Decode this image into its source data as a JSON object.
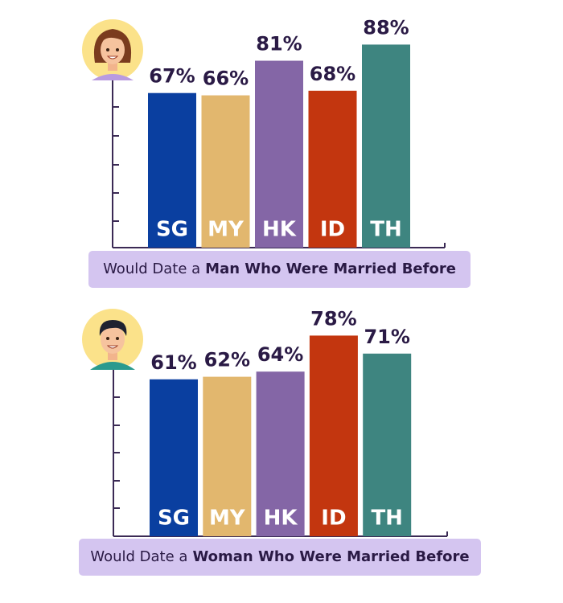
{
  "chart_data": [
    {
      "type": "bar",
      "title": "Would Date a",
      "title_emphasis": "Man Who Were Married Before",
      "categories": [
        "SG",
        "MY",
        "HK",
        "ID",
        "TH"
      ],
      "values": [
        67,
        66,
        81,
        68,
        88
      ],
      "value_labels": [
        "67%",
        "66%",
        "81%",
        "68%",
        "88%"
      ],
      "colors": [
        "#0a3fa0",
        "#e2b76e",
        "#8466a6",
        "#c3360f",
        "#3e8580"
      ],
      "ylim": [
        0,
        100
      ]
    },
    {
      "type": "bar",
      "title": "Would Date a",
      "title_emphasis": "Woman Who Were Married Before",
      "categories": [
        "SG",
        "MY",
        "HK",
        "ID",
        "TH"
      ],
      "values": [
        61,
        62,
        64,
        78,
        71
      ],
      "value_labels": [
        "61%",
        "62%",
        "64%",
        "78%",
        "71%"
      ],
      "colors": [
        "#0a3fa0",
        "#e2b76e",
        "#8466a6",
        "#c3360f",
        "#3e8580"
      ],
      "ylim": [
        0,
        100
      ]
    }
  ]
}
